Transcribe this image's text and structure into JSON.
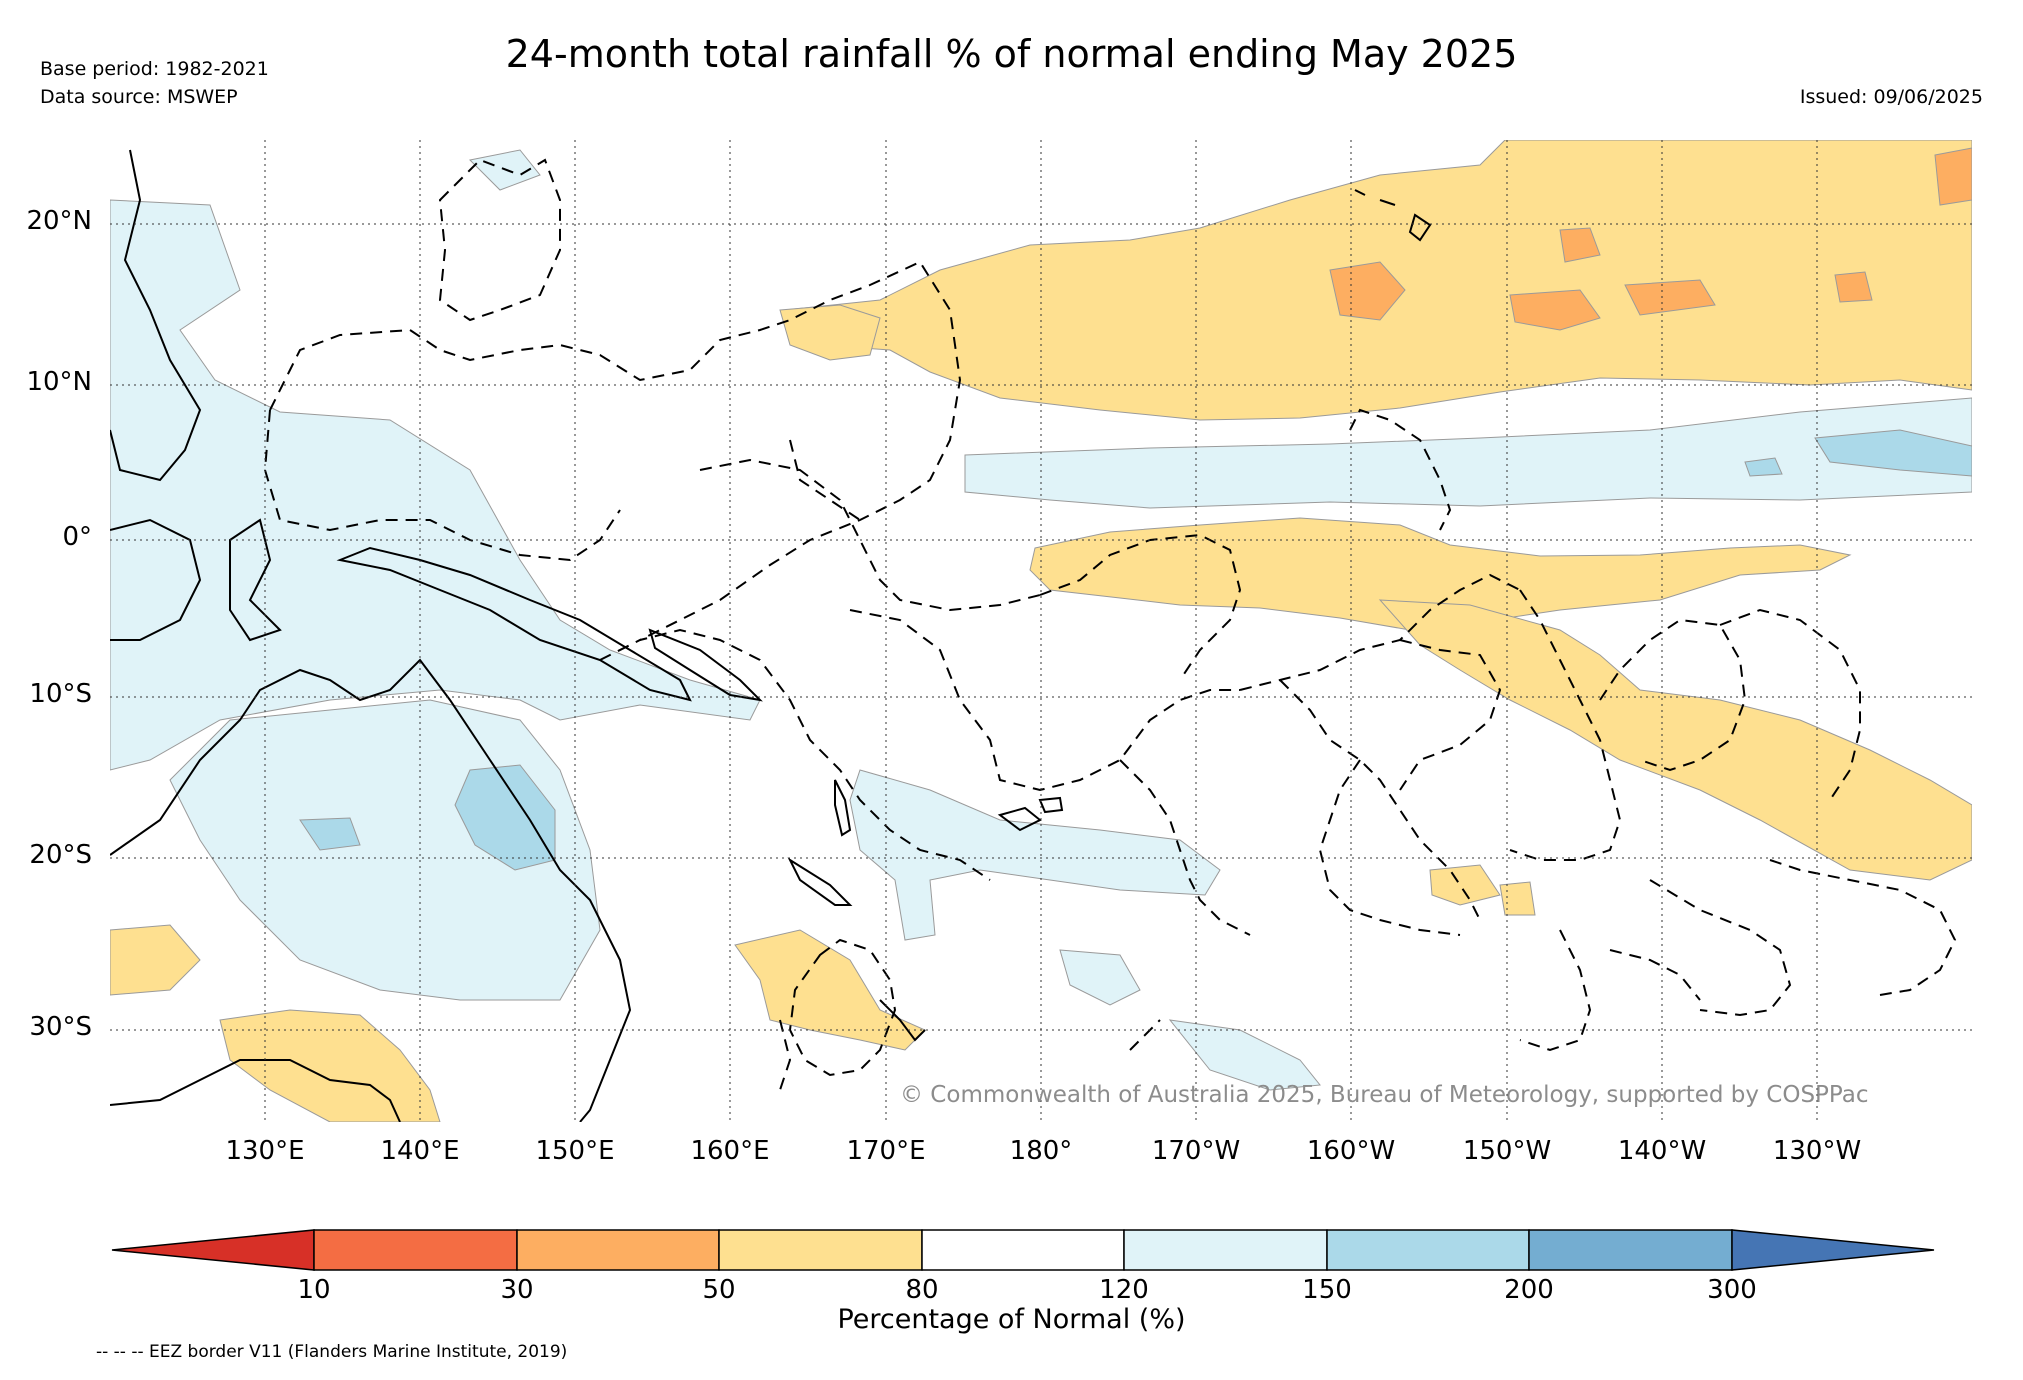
{
  "header": {
    "title": "24-month total rainfall % of normal ending May 2025",
    "base_period": "Base period: 1982-2021",
    "data_source": "Data source: MSWEP",
    "issued": "Issued: 09/06/2025"
  },
  "map": {
    "lat_labels": [
      "20°N",
      "10°N",
      "0°",
      "10°S",
      "20°S",
      "30°S"
    ],
    "lon_labels": [
      "130°E",
      "140°E",
      "150°E",
      "160°E",
      "170°E",
      "180°",
      "170°W",
      "160°W",
      "150°W",
      "140°W",
      "130°W"
    ],
    "copyright": "© Commonwealth of Australia 2025, Bureau of Meteorology, supported by COSPPac",
    "regions": [
      {
        "name": "North Pacific dry band",
        "category": "50-80"
      },
      {
        "name": "Equatorial central Pacific dry band",
        "category": "50-80"
      },
      {
        "name": "South-east Pacific dry band",
        "category": "50-80"
      },
      {
        "name": "North-central Pacific patches",
        "category": "30-50"
      },
      {
        "name": "New Caledonia / Coral Sea dry area",
        "category": "50-80"
      },
      {
        "name": "South-west Australia dry area",
        "category": "50-80"
      },
      {
        "name": "North equatorial wet band",
        "category": "120-150"
      },
      {
        "name": "Eastern north equatorial wet core",
        "category": "150-200"
      },
      {
        "name": "Maritime continent wet area",
        "category": "120-150"
      },
      {
        "name": "Queensland wet core",
        "category": "150-200"
      },
      {
        "name": "South Pacific Convergence wet band",
        "category": "120-150"
      }
    ]
  },
  "colorbar": {
    "title": "Percentage of Normal (%)",
    "ticks": [
      "10",
      "30",
      "50",
      "80",
      "120",
      "150",
      "200",
      "300"
    ],
    "colors": [
      "#d73027",
      "#f46d43",
      "#fdae61",
      "#fee090",
      "#ffffff",
      "#e0f3f8",
      "#abd9e9",
      "#74add1",
      "#4575b4"
    ]
  },
  "footnote": "-- -- -- EEZ border V11 (Flanders Marine Institute, 2019)"
}
